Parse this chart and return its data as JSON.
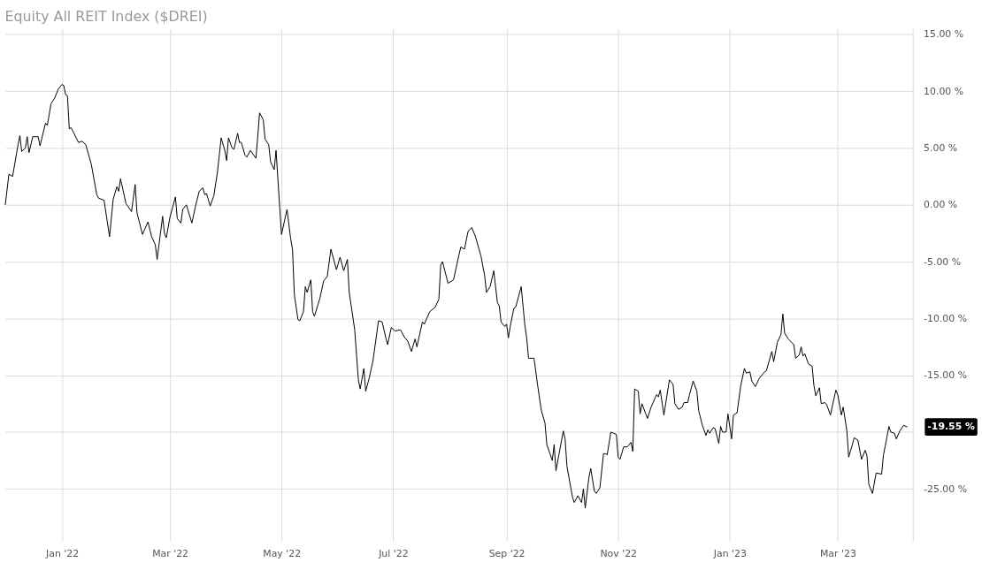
{
  "chart_data": {
    "type": "line",
    "title": "Equity All REIT Index ($DREI)",
    "x": [
      "2021-12-01",
      "2021-12-03",
      "2021-12-05",
      "2021-12-08",
      "2021-12-09",
      "2021-12-10",
      "2021-12-12",
      "2021-12-13",
      "2021-12-14",
      "2021-12-16",
      "2021-12-19",
      "2021-12-20",
      "2021-12-23",
      "2021-12-24",
      "2021-12-26",
      "2021-12-28",
      "2021-12-30",
      "2022-01-01",
      "2022-01-02",
      "2022-01-03",
      "2022-01-04",
      "2022-01-05",
      "2022-01-06",
      "2022-01-10",
      "2022-01-12",
      "2022-01-14",
      "2022-01-17",
      "2022-01-20",
      "2022-01-21",
      "2022-01-24",
      "2022-01-27",
      "2022-01-29",
      "2022-01-31",
      "2022-02-01",
      "2022-02-02",
      "2022-02-05",
      "2022-02-06",
      "2022-02-08",
      "2022-02-10",
      "2022-02-11",
      "2022-02-14",
      "2022-02-17",
      "2022-02-19",
      "2022-02-21",
      "2022-02-22",
      "2022-02-25",
      "2022-02-26",
      "2022-02-27",
      "2022-03-01",
      "2022-03-04",
      "2022-03-05",
      "2022-03-07",
      "2022-03-08",
      "2022-03-10",
      "2022-03-13",
      "2022-03-15",
      "2022-03-17",
      "2022-03-19",
      "2022-03-20",
      "2022-03-21",
      "2022-03-23",
      "2022-03-25",
      "2022-03-27",
      "2022-03-29",
      "2022-03-31",
      "2022-04-01",
      "2022-04-02",
      "2022-04-04",
      "2022-04-05",
      "2022-04-07",
      "2022-04-08",
      "2022-04-09",
      "2022-04-11",
      "2022-04-12",
      "2022-04-14",
      "2022-04-17",
      "2022-04-18",
      "2022-04-19",
      "2022-04-21",
      "2022-04-22",
      "2022-04-24",
      "2022-04-25",
      "2022-04-27",
      "2022-04-28",
      "2022-04-30",
      "2022-05-01",
      "2022-05-04",
      "2022-05-06",
      "2022-05-07",
      "2022-05-08",
      "2022-05-10",
      "2022-05-11",
      "2022-05-13",
      "2022-05-14",
      "2022-05-15",
      "2022-05-17",
      "2022-05-18",
      "2022-05-19",
      "2022-05-22",
      "2022-05-24",
      "2022-05-26",
      "2022-05-28",
      "2022-05-31",
      "2022-06-02",
      "2022-06-04",
      "2022-06-06",
      "2022-06-07",
      "2022-06-10",
      "2022-06-12",
      "2022-06-13",
      "2022-06-15",
      "2022-06-16",
      "2022-06-18",
      "2022-06-20",
      "2022-06-23",
      "2022-06-25",
      "2022-06-27",
      "2022-06-28",
      "2022-06-30",
      "2022-07-02",
      "2022-07-05",
      "2022-07-07",
      "2022-07-09",
      "2022-07-11",
      "2022-07-13",
      "2022-07-14",
      "2022-07-17",
      "2022-07-18",
      "2022-07-21",
      "2022-07-24",
      "2022-07-26",
      "2022-07-27",
      "2022-07-28",
      "2022-07-31",
      "2022-08-03",
      "2022-08-06",
      "2022-08-07",
      "2022-08-09",
      "2022-08-11",
      "2022-08-13",
      "2022-08-15",
      "2022-08-18",
      "2022-08-20",
      "2022-08-21",
      "2022-08-23",
      "2022-08-25",
      "2022-08-27",
      "2022-08-28",
      "2022-08-29",
      "2022-08-31",
      "2022-09-01",
      "2022-09-02",
      "2022-09-03",
      "2022-09-05",
      "2022-09-06",
      "2022-09-09",
      "2022-09-11",
      "2022-09-12",
      "2022-09-13",
      "2022-09-16",
      "2022-09-18",
      "2022-09-20",
      "2022-09-22",
      "2022-09-23",
      "2022-09-26",
      "2022-09-27",
      "2022-09-28",
      "2022-10-02",
      "2022-10-03",
      "2022-10-04",
      "2022-10-07",
      "2022-10-08",
      "2022-10-10",
      "2022-10-12",
      "2022-10-13",
      "2022-10-14",
      "2022-10-16",
      "2022-10-17",
      "2022-10-19",
      "2022-10-20",
      "2022-10-22",
      "2022-10-24",
      "2022-10-25",
      "2022-10-26",
      "2022-10-28",
      "2022-10-31",
      "2022-11-01",
      "2022-11-02",
      "2022-11-04",
      "2022-11-06",
      "2022-11-08",
      "2022-11-09",
      "2022-11-10",
      "2022-11-12",
      "2022-11-13",
      "2022-11-14",
      "2022-11-17",
      "2022-11-19",
      "2022-11-22",
      "2022-11-23",
      "2022-11-24",
      "2022-11-26",
      "2022-11-29",
      "2022-12-01",
      "2022-12-02",
      "2022-12-04",
      "2022-12-06",
      "2022-12-07",
      "2022-12-09",
      "2022-12-10",
      "2022-12-12",
      "2022-12-14",
      "2022-12-15",
      "2022-12-17",
      "2022-12-19",
      "2022-12-20",
      "2022-12-21",
      "2022-12-23",
      "2022-12-24",
      "2022-12-26",
      "2022-12-27",
      "2022-12-28",
      "2022-12-30",
      "2022-12-31",
      "2023-01-02",
      "2023-01-03",
      "2023-01-05",
      "2023-01-07",
      "2023-01-09",
      "2023-01-10",
      "2023-01-12",
      "2023-01-13",
      "2023-01-15",
      "2023-01-17",
      "2023-01-20",
      "2023-01-21",
      "2023-01-24",
      "2023-01-25",
      "2023-01-27",
      "2023-01-29",
      "2023-01-30",
      "2023-01-31",
      "2023-02-02",
      "2023-02-05",
      "2023-02-06",
      "2023-02-08",
      "2023-02-09",
      "2023-02-10",
      "2023-02-11",
      "2023-02-13",
      "2023-02-15",
      "2023-02-16",
      "2023-02-17",
      "2023-02-19",
      "2023-02-20",
      "2023-02-22",
      "2023-02-23",
      "2023-02-25",
      "2023-02-28",
      "2023-03-01",
      "2023-03-03",
      "2023-03-04",
      "2023-03-06",
      "2023-03-07",
      "2023-03-09",
      "2023-03-10",
      "2023-03-12",
      "2023-03-14",
      "2023-03-16",
      "2023-03-17",
      "2023-03-18",
      "2023-03-20",
      "2023-03-22",
      "2023-03-25",
      "2023-03-26",
      "2023-03-27",
      "2023-03-29",
      "2023-03-30",
      "2023-04-01",
      "2023-04-02",
      "2023-04-04",
      "2023-04-06",
      "2023-04-08"
    ],
    "series": [
      {
        "color": "#000000",
        "values": [
          0,
          2.7,
          2.5,
          5.3,
          6.1,
          4.7,
          5.0,
          6.0,
          4.6,
          6.0,
          6.0,
          5.2,
          7.2,
          7.0,
          8.9,
          9.4,
          10.2,
          10.6,
          10.5,
          9.7,
          9.6,
          6.7,
          6.8,
          5.5,
          5.6,
          5.3,
          3.6,
          0.9,
          0.6,
          0.4,
          -2.8,
          0.5,
          1.6,
          1.2,
          2.3,
          0.1,
          -0.1,
          -0.6,
          1.8,
          -0.7,
          -2.6,
          -1.5,
          -2.8,
          -3.5,
          -4.8,
          -1.0,
          -2.5,
          -2.9,
          -1.1,
          0.7,
          -1.2,
          -1.6,
          -0.4,
          0,
          -1.6,
          -0.1,
          1.2,
          1.5,
          0.9,
          1.0,
          -0.1,
          0.8,
          2.9,
          5.9,
          4.8,
          3.9,
          5.9,
          5.0,
          4.9,
          6.3,
          5.5,
          5.5,
          4.4,
          4.2,
          4.8,
          4.1,
          6.0,
          8.1,
          7.5,
          5.8,
          5.3,
          3.8,
          3.1,
          4.8,
          -0.2,
          -2.6,
          -0.4,
          -3.0,
          -3.9,
          -7.9,
          -10.1,
          -10.2,
          -9.4,
          -7.2,
          -7.7,
          -6.6,
          -9.4,
          -9.8,
          -8.2,
          -6.7,
          -6.3,
          -3.9,
          -5.7,
          -4.6,
          -5.8,
          -4.8,
          -7.7,
          -11.0,
          -15.4,
          -16.2,
          -14.4,
          -16.4,
          -15.2,
          -13.7,
          -10.2,
          -10.3,
          -11.7,
          -12.3,
          -10.8,
          -11.1,
          -11.0,
          -11.6,
          -12.0,
          -12.9,
          -11.8,
          -12.5,
          -10.3,
          -10.5,
          -9.4,
          -9.0,
          -8.3,
          -5.3,
          -5.0,
          -6.9,
          -6.6,
          -4.4,
          -3.7,
          -3.9,
          -2.3,
          -2.0,
          -2.8,
          -4.5,
          -6.2,
          -7.7,
          -7.2,
          -5.8,
          -8.6,
          -8.9,
          -10.3,
          -10.7,
          -10.5,
          -11.7,
          -10.7,
          -9.1,
          -9.0,
          -7.2,
          -10.6,
          -11.7,
          -13.5,
          -13.5,
          -15.9,
          -18.1,
          -19.2,
          -21.1,
          -22.5,
          -21.1,
          -23.4,
          -19.9,
          -20.6,
          -23.0,
          -25.7,
          -26.2,
          -25.6,
          -26.2,
          -25.0,
          -26.7,
          -24.0,
          -23.2,
          -25.2,
          -25.4,
          -24.9,
          -21.9,
          -21.9,
          -22.0,
          -20.0,
          -20.2,
          -22.2,
          -22.4,
          -21.3,
          -21.3,
          -20.9,
          -21.7,
          -16.2,
          -16.4,
          -18.4,
          -17.5,
          -18.8,
          -17.8,
          -16.7,
          -16.9,
          -16.3,
          -18.5,
          -15.4,
          -15.8,
          -17.5,
          -18.0,
          -17.8,
          -17.4,
          -17.4,
          -16.7,
          -15.5,
          -16.4,
          -18.1,
          -19.4,
          -20.3,
          -19.8,
          -20.1,
          -19.6,
          -19.7,
          -21.0,
          -19.5,
          -20.0,
          -20.0,
          -18.4,
          -20.6,
          -18.5,
          -18.3,
          -15.9,
          -14.4,
          -14.8,
          -14.7,
          -15.5,
          -16.0,
          -15.3,
          -14.7,
          -14.6,
          -12.9,
          -13.8,
          -12.1,
          -11.4,
          -9.6,
          -11.3,
          -11.8,
          -12.3,
          -13.5,
          -13.2,
          -12.5,
          -13.3,
          -13.1,
          -14.0,
          -14.2,
          -15.9,
          -16.8,
          -16.1,
          -17.5,
          -17.4,
          -17.6,
          -18.5,
          -16.3,
          -16.7,
          -18.5,
          -17.8,
          -19.9,
          -22.2,
          -21.1,
          -20.5,
          -20.7,
          -22.4,
          -21.6,
          -22.1,
          -24.6,
          -25.4,
          -23.6,
          -23.7,
          -22.0,
          -21.2,
          -19.5,
          -20.0,
          -20.1,
          -20.6,
          -19.9,
          -19.4,
          -19.55
        ]
      }
    ],
    "xlim": [
      "2021-12-01",
      "2023-04-11"
    ],
    "xticks": [
      {
        "value": "2022-01-01",
        "label": "Jan '22"
      },
      {
        "value": "2022-03-01",
        "label": "Mar '22"
      },
      {
        "value": "2022-05-01",
        "label": "May '22"
      },
      {
        "value": "2022-07-01",
        "label": "Jul '22"
      },
      {
        "value": "2022-09-01",
        "label": "Sep '22"
      },
      {
        "value": "2022-11-01",
        "label": "Nov '22"
      },
      {
        "value": "2023-01-01",
        "label": "Jan '23"
      },
      {
        "value": "2023-03-01",
        "label": "Mar '23"
      }
    ],
    "ylim": [
      -29.6,
      15.5
    ],
    "yticks": [
      {
        "value": 15,
        "label": "15.00 %"
      },
      {
        "value": 10,
        "label": "10.00 %"
      },
      {
        "value": 5,
        "label": "5.00 %"
      },
      {
        "value": 0,
        "label": "0.00 %"
      },
      {
        "value": -5,
        "label": "-5.00 %"
      },
      {
        "value": -10,
        "label": "-10.00 %"
      },
      {
        "value": -15,
        "label": "-15.00 %"
      },
      {
        "value": -20,
        "label": null
      },
      {
        "value": -25,
        "label": "-25.00 %"
      }
    ],
    "grid": true,
    "annotations": [
      {
        "text": "-19.55 %",
        "x": "2023-04-08",
        "y": -19.55
      }
    ]
  }
}
